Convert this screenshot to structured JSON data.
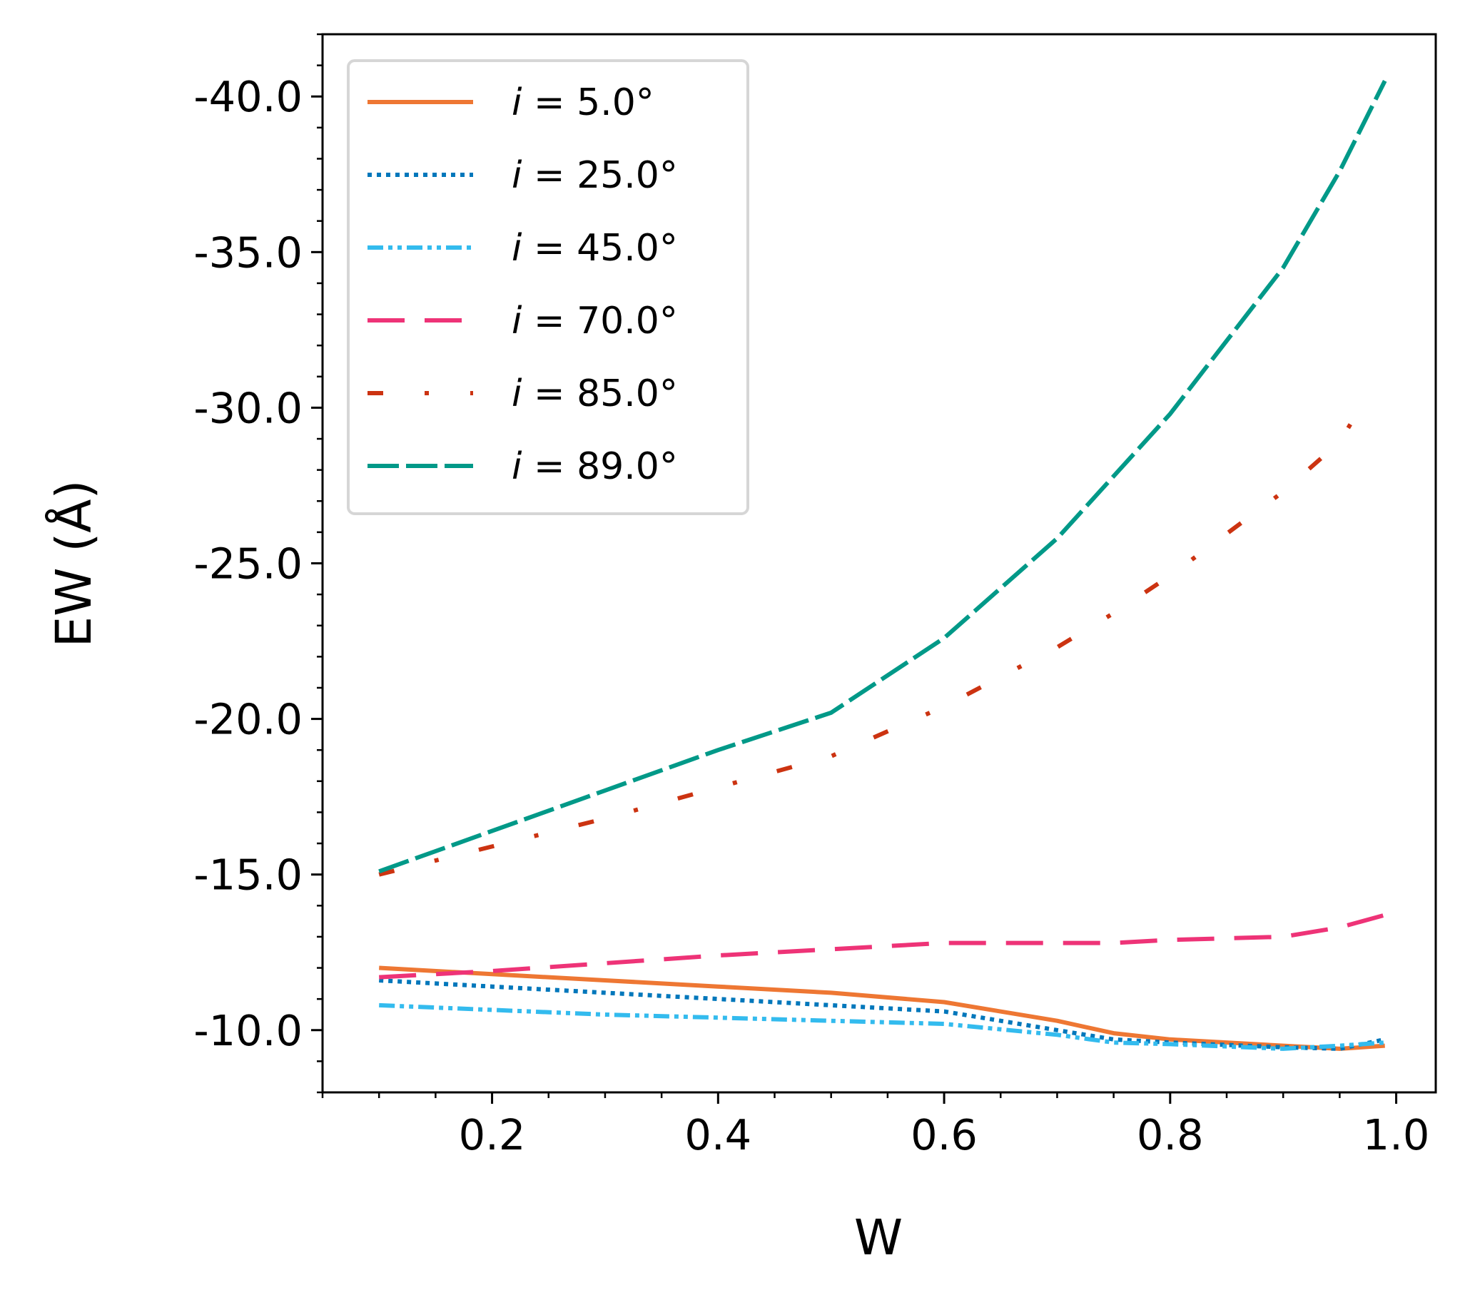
{
  "chart_data": {
    "type": "line",
    "title": "",
    "xlabel": "W",
    "ylabel": "EW (Å)",
    "xlim": [
      0.05,
      1.035
    ],
    "ylim": [
      -8.0,
      -42.0
    ],
    "y_inverted": true,
    "grid": false,
    "legend_position": "top-left",
    "x_ticks": [
      0.2,
      0.4,
      0.6,
      0.8,
      1.0
    ],
    "x_tick_labels": [
      "0.2",
      "0.4",
      "0.6",
      "0.8",
      "1.0"
    ],
    "y_ticks": [
      -10.0,
      -15.0,
      -20.0,
      -25.0,
      -30.0,
      -35.0,
      -40.0
    ],
    "y_tick_labels": [
      "-10.0",
      "-15.0",
      "-20.0",
      "-25.0",
      "-30.0",
      "-35.0",
      "-40.0"
    ],
    "x_minor_step": 0.05,
    "y_minor_step": 1.0,
    "series": [
      {
        "name": "i = 5.0°",
        "label_symbol": "i",
        "label_value": " = 5.0°",
        "color": "#ee7733",
        "dash": "solid",
        "x": [
          0.1,
          0.2,
          0.3,
          0.4,
          0.5,
          0.6,
          0.7,
          0.75,
          0.8,
          0.9,
          0.95,
          0.99
        ],
        "y": [
          -12.0,
          -11.8,
          -11.6,
          -11.4,
          -11.2,
          -10.9,
          -10.3,
          -9.9,
          -9.7,
          -9.5,
          -9.4,
          -9.5
        ]
      },
      {
        "name": "i = 25.0°",
        "label_symbol": "i",
        "label_value": " = 25.0°",
        "color": "#0077bb",
        "dash": "dotted",
        "x": [
          0.1,
          0.2,
          0.3,
          0.4,
          0.5,
          0.6,
          0.7,
          0.75,
          0.8,
          0.9,
          0.95,
          0.99
        ],
        "y": [
          -11.6,
          -11.4,
          -11.2,
          -11.0,
          -10.8,
          -10.6,
          -10.0,
          -9.7,
          -9.6,
          -9.45,
          -9.4,
          -9.7
        ]
      },
      {
        "name": "i = 45.0°",
        "label_symbol": "i",
        "label_value": " = 45.0°",
        "color": "#33bbee",
        "dash": "dashdotdot",
        "x": [
          0.1,
          0.2,
          0.3,
          0.4,
          0.5,
          0.6,
          0.7,
          0.75,
          0.8,
          0.9,
          0.95,
          0.99
        ],
        "y": [
          -10.8,
          -10.65,
          -10.5,
          -10.4,
          -10.3,
          -10.2,
          -9.85,
          -9.6,
          -9.55,
          -9.4,
          -9.5,
          -9.6
        ]
      },
      {
        "name": "i = 70.0°",
        "label_symbol": "i",
        "label_value": " = 70.0°",
        "color": "#ee3377",
        "dash": "longdash",
        "x": [
          0.1,
          0.2,
          0.3,
          0.4,
          0.5,
          0.6,
          0.7,
          0.75,
          0.8,
          0.9,
          0.95,
          0.99
        ],
        "y": [
          -11.7,
          -11.9,
          -12.15,
          -12.4,
          -12.6,
          -12.8,
          -12.8,
          -12.8,
          -12.9,
          -13.0,
          -13.3,
          -13.7
        ]
      },
      {
        "name": "i = 85.0°",
        "label_symbol": "i",
        "label_value": " = 85.0°",
        "color": "#cc3311",
        "dash": "dashdot-sparse",
        "x": [
          0.1,
          0.2,
          0.3,
          0.4,
          0.5,
          0.6,
          0.7,
          0.75,
          0.8,
          0.9,
          0.95,
          0.97
        ],
        "y": [
          -15.0,
          -15.9,
          -16.8,
          -17.8,
          -18.8,
          -20.4,
          -22.3,
          -23.4,
          -24.6,
          -27.3,
          -28.9,
          -30.1
        ]
      },
      {
        "name": "i = 89.0°",
        "label_symbol": "i",
        "label_value": " = 89.0°",
        "color": "#009988",
        "dash": "dashed",
        "x": [
          0.1,
          0.2,
          0.3,
          0.4,
          0.5,
          0.6,
          0.7,
          0.75,
          0.8,
          0.9,
          0.95,
          0.99
        ],
        "y": [
          -15.1,
          -16.4,
          -17.7,
          -19.0,
          -20.2,
          -22.6,
          -25.8,
          -27.8,
          -29.8,
          -34.5,
          -37.6,
          -40.5
        ]
      }
    ]
  }
}
